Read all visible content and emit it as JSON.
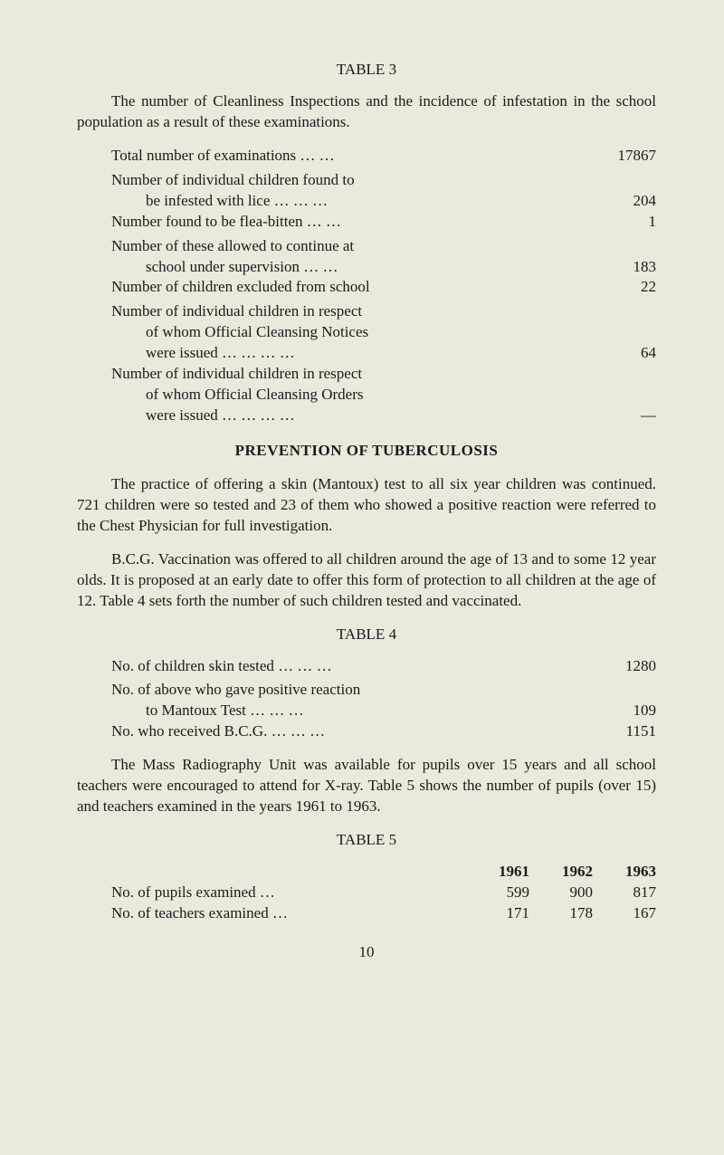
{
  "table3": {
    "title": "TABLE 3",
    "intro": "The number of Cleanliness Inspections and the incidence of infestation in the school population as a result of these examinations.",
    "rows": [
      {
        "label": "Total number of examinations     …     …",
        "value": "17867"
      },
      {
        "multiline": true,
        "line1": "Number of individual children found to",
        "lastLabel": "be infested with lice   …     …     …",
        "value": "204"
      },
      {
        "label": "Number found to be flea-bitten    …     …",
        "value": "1"
      },
      {
        "multiline": true,
        "line1": "Number of these allowed to continue at",
        "lastLabel": "school under supervision   …     …",
        "value": "183"
      },
      {
        "label": "Number of children excluded from school",
        "value": "22"
      },
      {
        "multiline": true,
        "line1": "Number of individual children in respect",
        "line2": "of whom Official Cleansing Notices",
        "lastLabel": "were issued          …     …     …     …",
        "value": "64"
      },
      {
        "multiline": true,
        "line1": "Number of individual children in respect",
        "line2": "of whom Official Cleansing Orders",
        "lastLabel": "were issued          …     …     …     …",
        "value": "—"
      }
    ]
  },
  "section_heading": "PREVENTION OF TUBERCULOSIS",
  "para1": "The practice of offering a skin (Mantoux) test to all six year children was continued.    721  children  were so tested and 23 of them who showed a positive reaction were referred to the Chest Physician for full investigation.",
  "para2": "B.C.G. Vaccination was offered to all children around the age of 13 and to some 12 year olds. It is proposed at an early date to offer this form of protection to all children at the  age  of  12.    Table 4 sets forth the number of such children tested and vaccinated.",
  "table4": {
    "title": "TABLE 4",
    "rows": [
      {
        "label": "No. of children skin tested  …     …     …",
        "value": "1280"
      },
      {
        "multiline": true,
        "line1": "No. of above who gave positive reaction",
        "lastLabel": "to Mantoux Test        …     …     …",
        "value": "109"
      },
      {
        "label": "No. who received B.C.G.   …     …     …",
        "value": "1151"
      }
    ]
  },
  "para3": "The Mass Radiography Unit was available for pupils over 15 years and all school teachers were encouraged to attend for X-ray.   Table 5 shows the number of pupils (over 15) and teachers examined in the years 1961 to 1963.",
  "table5": {
    "title": "TABLE 5",
    "headers": [
      "1961",
      "1962",
      "1963"
    ],
    "rows": [
      {
        "label": "No. of pupils examined         …",
        "values": [
          "599",
          "900",
          "817"
        ]
      },
      {
        "label": "No. of teachers examined     …",
        "values": [
          "171",
          "178",
          "167"
        ]
      }
    ]
  },
  "page_number": "10"
}
